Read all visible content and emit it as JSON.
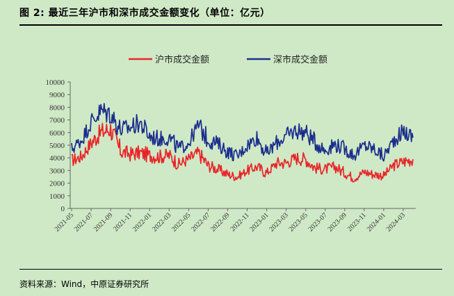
{
  "title": "图 2:  最近三年沪市和深市成交金额变化（单位：亿元）",
  "source": "资料来源：Wind，中原证券研究所",
  "chart_data": {
    "type": "line",
    "title": "",
    "xlabel": "",
    "ylabel": "",
    "ylim": [
      0,
      10000
    ],
    "y_ticks": [
      0,
      1000,
      2000,
      3000,
      4000,
      5000,
      6000,
      7000,
      8000,
      9000,
      10000
    ],
    "x_ticks": [
      "2021-05",
      "2021-07",
      "2021-09",
      "2021-11",
      "2022-01",
      "2022-03",
      "2022-05",
      "2022-07",
      "2022-09",
      "2022-11",
      "2023-01",
      "2023-03",
      "2023-05",
      "2023-07",
      "2023-09",
      "2023-11",
      "2024-01",
      "2024-03"
    ],
    "x": [
      "2021-05",
      "2021-06",
      "2021-07",
      "2021-08",
      "2021-09",
      "2021-10",
      "2021-11",
      "2021-12",
      "2022-01",
      "2022-02",
      "2022-03",
      "2022-04",
      "2022-05",
      "2022-06",
      "2022-07",
      "2022-08",
      "2022-09",
      "2022-10",
      "2022-11",
      "2022-12",
      "2023-01",
      "2023-02",
      "2023-03",
      "2023-04",
      "2023-05",
      "2023-06",
      "2023-07",
      "2023-08",
      "2023-09",
      "2023-10",
      "2023-11",
      "2023-12",
      "2024-01",
      "2024-02",
      "2024-03",
      "2024-04"
    ],
    "series": [
      {
        "name": "沪市成交金额",
        "color": "#e8262a",
        "values": [
          3800,
          4100,
          5200,
          6000,
          6300,
          4500,
          4300,
          4400,
          4200,
          4100,
          4200,
          3500,
          3900,
          4400,
          3400,
          3100,
          2700,
          2500,
          3000,
          3300,
          2800,
          3600,
          3600,
          4000,
          3900,
          3200,
          3100,
          3300,
          2800,
          2400,
          2900,
          2700,
          2600,
          3400,
          3700,
          3900
        ]
      },
      {
        "name": "深市成交金额",
        "color": "#1c2e8c",
        "values": [
          4700,
          5400,
          6800,
          7700,
          7500,
          6200,
          6400,
          6800,
          5700,
          5500,
          5600,
          4700,
          5200,
          6600,
          5400,
          5100,
          4500,
          4100,
          5000,
          5600,
          4300,
          5200,
          5700,
          6200,
          6000,
          5200,
          4600,
          5100,
          4700,
          4200,
          5000,
          4700,
          4100,
          5400,
          6100,
          5600
        ]
      }
    ],
    "legend": "top"
  }
}
